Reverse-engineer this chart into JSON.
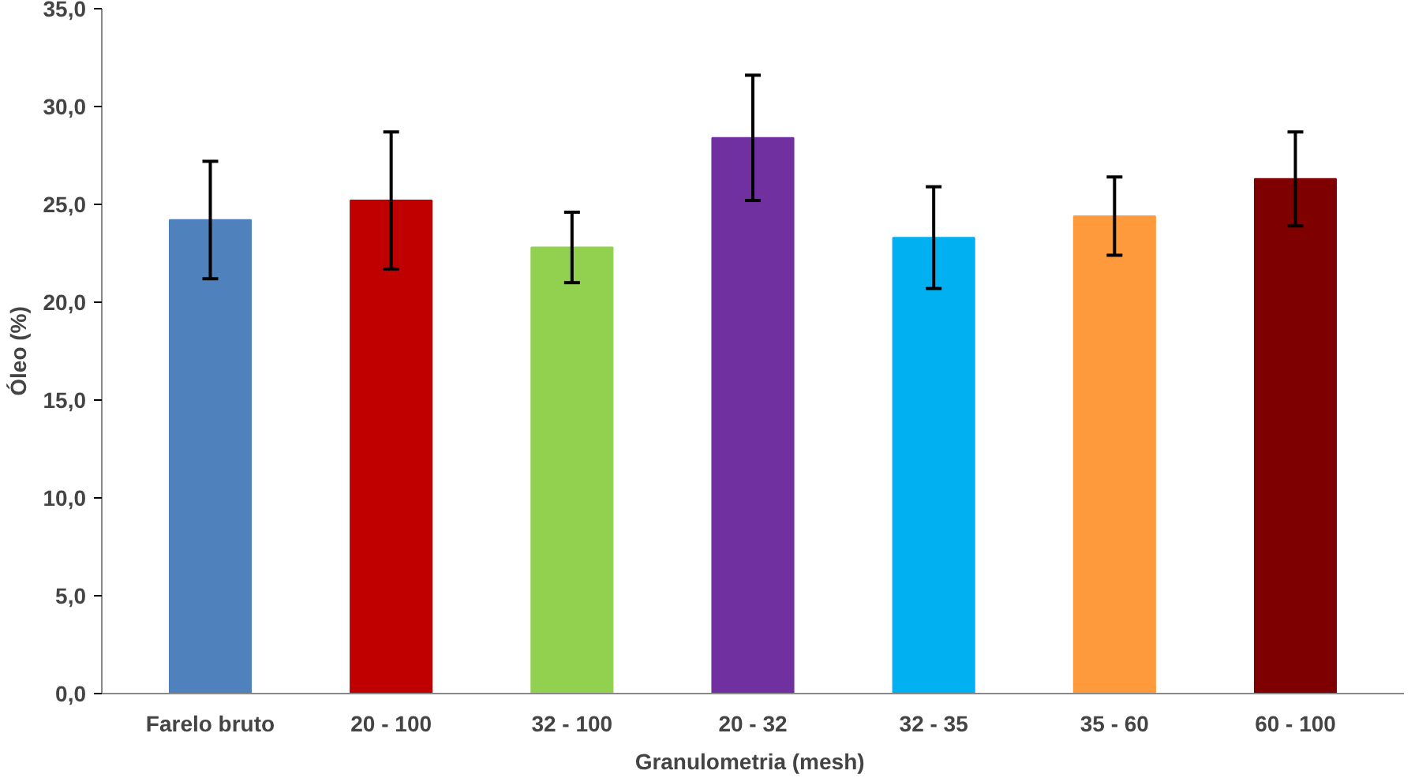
{
  "chart_data": {
    "type": "bar",
    "xlabel": "Granulometria  (mesh)",
    "ylabel": "Óleo (%)",
    "categories": [
      "Farelo bruto",
      "20 - 100",
      "32 - 100",
      "20 - 32",
      "32 - 35",
      "35 - 60",
      "60 - 100"
    ],
    "values": [
      24.2,
      25.2,
      22.8,
      28.4,
      23.3,
      24.4,
      26.3
    ],
    "errors": [
      3.0,
      3.5,
      1.8,
      3.2,
      2.6,
      2.0,
      2.4
    ],
    "colors": [
      "#4f81bd",
      "#c00000",
      "#92d050",
      "#7030a0",
      "#00b0f0",
      "#ff9a3c",
      "#7f0000"
    ],
    "ylim": [
      0,
      35
    ],
    "yticks": [
      {
        "value": 0,
        "label": "0,0"
      },
      {
        "value": 5,
        "label": "5,0"
      },
      {
        "value": 10,
        "label": "10,0"
      },
      {
        "value": 15,
        "label": "15,0"
      },
      {
        "value": 20,
        "label": "20,0"
      },
      {
        "value": 25,
        "label": "25,0"
      },
      {
        "value": 30,
        "label": "30,0"
      },
      {
        "value": 35,
        "label": "35,0"
      }
    ],
    "grid": false
  }
}
